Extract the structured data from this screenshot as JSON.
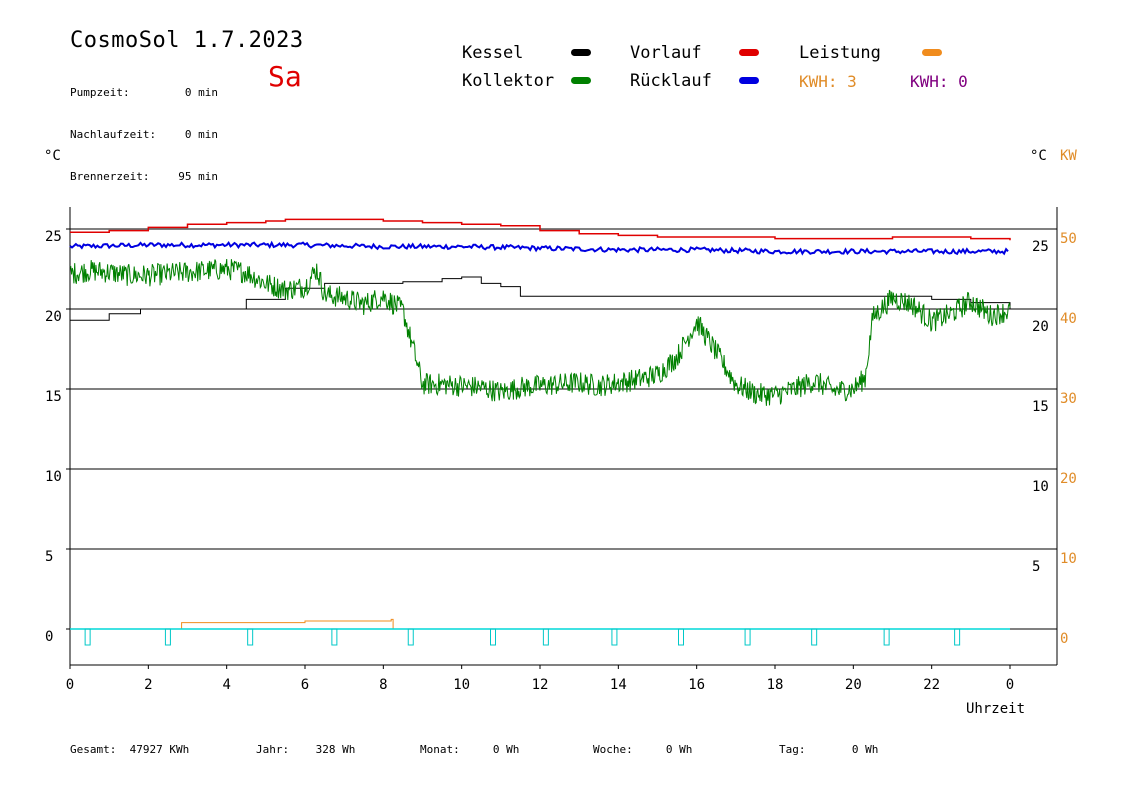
{
  "header": {
    "title": "CosmoSol 1.7.2023",
    "day": "Sa",
    "info": [
      {
        "label": "Pumpzeit:",
        "value": "0 min"
      },
      {
        "label": "Nachlaufzeit:",
        "value": "0 min"
      },
      {
        "label": "Brennerzeit:",
        "value": "95 min"
      }
    ]
  },
  "legend": [
    {
      "label": "Kessel",
      "color": "#000000"
    },
    {
      "label": "Kollektor",
      "color": "#008000"
    },
    {
      "label": "Vorlauf",
      "color": "#e00000"
    },
    {
      "label": "Rücklauf",
      "color": "#0000e0"
    },
    {
      "label": "Leistung",
      "color": "#f08c1e"
    }
  ],
  "kwh": [
    {
      "label": "KWH:",
      "value": "3",
      "color": "#e08c28"
    },
    {
      "label": "KWH:",
      "value": "0",
      "color": "#800080"
    }
  ],
  "axis_units": {
    "left": "°C",
    "right_temp": "°C",
    "right_kw": "KW",
    "x": "Uhrzeit"
  },
  "footer": [
    {
      "label": "Gesamt:",
      "value": "47927 KWh"
    },
    {
      "label": "Jahr:",
      "value": "328 Wh"
    },
    {
      "label": "Monat:",
      "value": "0 Wh"
    },
    {
      "label": "Woche:",
      "value": "0 Wh"
    },
    {
      "label": "Tag:",
      "value": "0 Wh"
    }
  ],
  "chart_data": {
    "type": "line",
    "xlabel": "Uhrzeit",
    "x_ticks": [
      "0",
      "2",
      "4",
      "6",
      "8",
      "10",
      "12",
      "14",
      "16",
      "18",
      "20",
      "22",
      "0"
    ],
    "xlim": [
      0,
      24
    ],
    "y_left_ticks": [
      "0",
      "5",
      "10",
      "15",
      "20",
      "25"
    ],
    "y_right_temp_ticks": [
      "5",
      "10",
      "15",
      "20",
      "25"
    ],
    "y_right_kw_ticks": [
      "0",
      "10",
      "20",
      "30",
      "40",
      "50"
    ],
    "ylim": [
      -2,
      27
    ],
    "grid": true,
    "series": [
      {
        "name": "Vorlauf",
        "color": "#e00000",
        "x": [
          0,
          1,
          2,
          3,
          4,
          5,
          5.5,
          6,
          7,
          8,
          9,
          10,
          11,
          12,
          13,
          14,
          15,
          16,
          17,
          18,
          19,
          20,
          21,
          22,
          23,
          24
        ],
        "y": [
          24.8,
          24.9,
          25.1,
          25.3,
          25.4,
          25.5,
          25.6,
          25.6,
          25.6,
          25.5,
          25.4,
          25.3,
          25.2,
          24.9,
          24.7,
          24.6,
          24.5,
          24.5,
          24.5,
          24.4,
          24.4,
          24.4,
          24.5,
          24.5,
          24.4,
          24.3
        ]
      },
      {
        "name": "Rücklauf",
        "color": "#0000e0",
        "x": [
          0,
          2,
          4,
          6,
          8,
          10,
          12,
          14,
          16,
          18,
          20,
          22,
          24
        ],
        "y": [
          23.9,
          24.0,
          24.0,
          24.0,
          23.9,
          23.9,
          23.8,
          23.7,
          23.7,
          23.6,
          23.6,
          23.6,
          23.6
        ],
        "band": 0.15
      },
      {
        "name": "Kessel",
        "color": "#000000",
        "x": [
          0,
          1,
          1.8,
          3.9,
          4.5,
          5.5,
          6.5,
          8.5,
          9.5,
          10,
          10.5,
          11,
          11.5,
          12,
          14,
          16,
          18,
          20,
          21,
          22,
          23,
          24
        ],
        "y": [
          19.3,
          19.7,
          20.0,
          20.0,
          20.6,
          21.3,
          21.6,
          21.7,
          21.9,
          22.0,
          21.6,
          21.4,
          20.8,
          20.8,
          20.8,
          20.8,
          20.8,
          20.8,
          20.8,
          20.6,
          20.4,
          20.0
        ]
      },
      {
        "name": "Kollektor",
        "color": "#008000",
        "x": [
          0,
          0.5,
          1,
          1.5,
          2,
          2.5,
          3,
          3.5,
          4,
          4.5,
          5,
          5.5,
          6,
          6.3,
          6.5,
          7,
          7.5,
          8,
          8.5,
          8.8,
          9,
          9.5,
          10,
          10.5,
          11,
          11.5,
          12,
          12.5,
          13,
          13.5,
          14,
          14.5,
          15,
          15.5,
          16,
          16.5,
          17,
          17.5,
          18,
          18.5,
          19,
          19.5,
          20,
          20.3,
          20.5,
          21,
          21.5,
          22,
          22.5,
          23,
          23.5,
          24
        ],
        "y": [
          22.2,
          22.4,
          22.3,
          22.1,
          22.1,
          22.2,
          22.3,
          22.4,
          22.5,
          22.3,
          21.6,
          21.2,
          21.4,
          22.5,
          20.9,
          20.7,
          20.3,
          20.8,
          19.9,
          17.2,
          15.3,
          15.3,
          15.2,
          15.1,
          14.8,
          15.1,
          15.2,
          15.3,
          15.4,
          15.2,
          15.4,
          15.6,
          15.9,
          17.0,
          19.2,
          17.3,
          15.3,
          14.7,
          14.6,
          15.0,
          15.5,
          14.9,
          15.0,
          15.7,
          19.5,
          20.7,
          20.3,
          19.2,
          19.7,
          20.5,
          19.6,
          19.9
        ],
        "noise": 0.7
      },
      {
        "name": "Leistung",
        "color": "#f08c1e",
        "x": [
          0,
          2.8,
          2.85,
          6,
          8.2,
          8.25,
          24
        ],
        "y": [
          0,
          0,
          0.4,
          0.5,
          0.6,
          0,
          0
        ]
      }
    ],
    "pump_markers_x": [
      0.45,
      2.5,
      4.6,
      6.75,
      8.7,
      10.8,
      12.15,
      13.9,
      15.6,
      17.3,
      19.0,
      20.85,
      22.65
    ]
  }
}
